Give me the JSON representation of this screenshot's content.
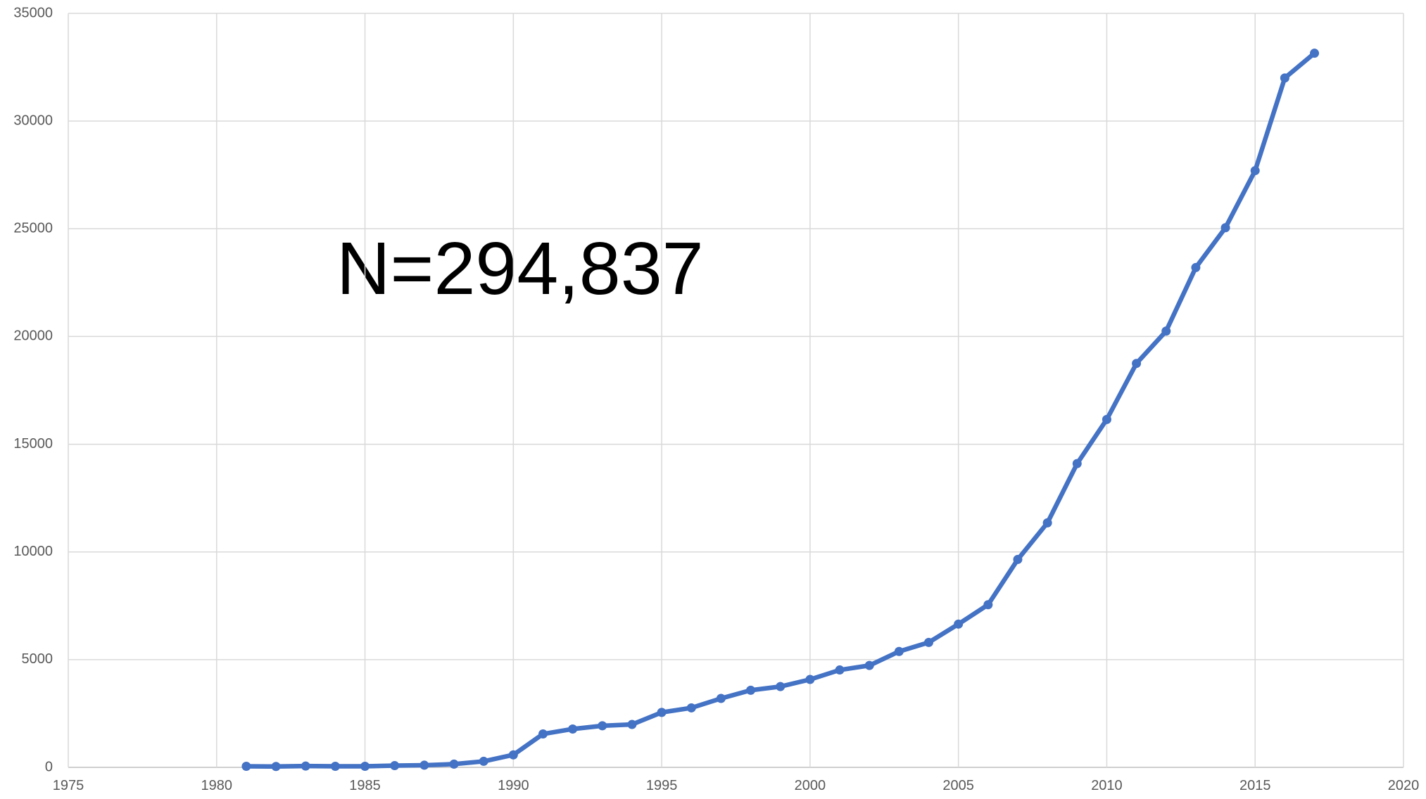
{
  "chart_data": {
    "type": "line",
    "annotation": "N=294,837",
    "x": [
      1981,
      1982,
      1983,
      1984,
      1985,
      1986,
      1987,
      1988,
      1989,
      1990,
      1991,
      1992,
      1993,
      1994,
      1995,
      1996,
      1997,
      1998,
      1999,
      2000,
      2001,
      2002,
      2003,
      2004,
      2005,
      2006,
      2007,
      2008,
      2009,
      2010,
      2011,
      2012,
      2013,
      2014,
      2015,
      2016,
      2017
    ],
    "series": [
      {
        "color": "#4472c4",
        "values": [
          50,
          40,
          60,
          50,
          50,
          80,
          100,
          150,
          280,
          580,
          1550,
          1780,
          1930,
          1990,
          2550,
          2760,
          3200,
          3580,
          3750,
          4080,
          4520,
          4730,
          5380,
          5800,
          6650,
          7550,
          9650,
          11350,
          14100,
          16150,
          18750,
          20250,
          23200,
          25050,
          27700,
          32000,
          33150
        ]
      }
    ],
    "xlim": [
      1975,
      2020
    ],
    "xticks": [
      1975,
      1980,
      1985,
      1990,
      1995,
      2000,
      2005,
      2010,
      2015,
      2020
    ],
    "ylim": [
      0,
      35000
    ],
    "yticks": [
      0,
      5000,
      10000,
      15000,
      20000,
      25000,
      30000,
      35000
    ],
    "grid": true
  }
}
